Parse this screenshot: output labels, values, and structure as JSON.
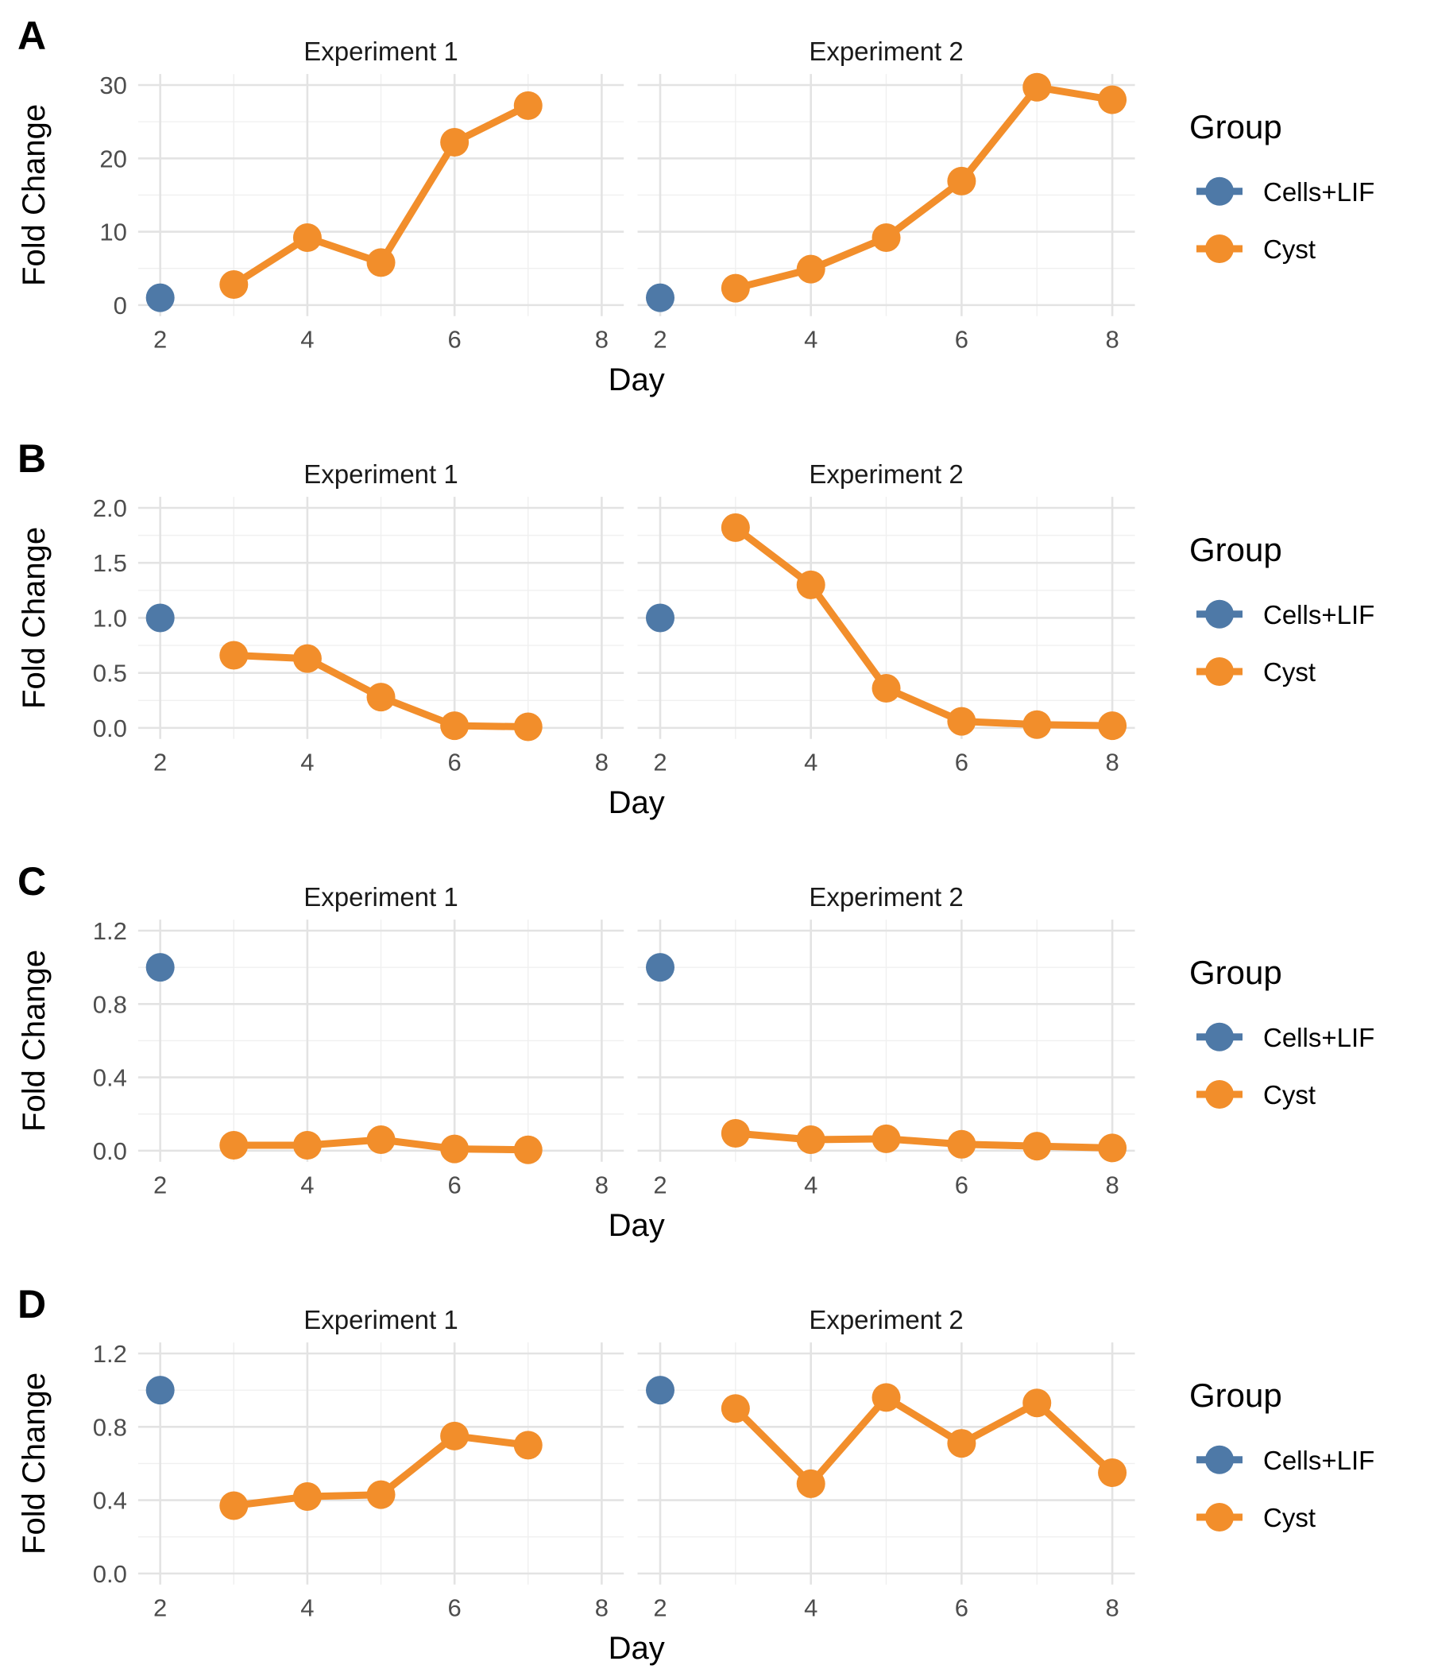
{
  "colors": {
    "cells_lif": "#4e79a7",
    "cyst": "#f28e2b",
    "grid_major": "#e3e3e3",
    "grid_minor": "#f0f0f0"
  },
  "chart_data": [
    {
      "type": "line",
      "panel": "A",
      "xlabel": "Day",
      "ylabel": "Fold Change",
      "x_ticks": [
        2,
        4,
        6,
        8
      ],
      "y_ticks": [
        0,
        10,
        20,
        30
      ],
      "y_tick_labels": [
        "0",
        "10",
        "20",
        "30"
      ],
      "ylim": [
        0,
        30
      ],
      "legend": {
        "title": "Group",
        "entries": [
          "Cells+LIF",
          "Cyst"
        ],
        "position": "right"
      },
      "facets": [
        {
          "title": "Experiment 1",
          "xlim": [
            2,
            8
          ],
          "series": [
            {
              "name": "Cells+LIF",
              "x": [
                2
              ],
              "y": [
                1
              ]
            },
            {
              "name": "Cyst",
              "x": [
                3,
                4,
                5,
                6,
                7
              ],
              "y": [
                2.8,
                9.2,
                5.8,
                22.2,
                27.2
              ]
            }
          ]
        },
        {
          "title": "Experiment 2",
          "xlim": [
            2,
            8
          ],
          "series": [
            {
              "name": "Cells+LIF",
              "x": [
                2
              ],
              "y": [
                1
              ]
            },
            {
              "name": "Cyst",
              "x": [
                3,
                4,
                5,
                6,
                7,
                8
              ],
              "y": [
                2.3,
                4.9,
                9.2,
                16.9,
                29.7,
                28.0
              ]
            }
          ]
        }
      ]
    },
    {
      "type": "line",
      "panel": "B",
      "xlabel": "Day",
      "ylabel": "Fold Change",
      "x_ticks": [
        2,
        4,
        6,
        8
      ],
      "y_ticks": [
        0,
        0.5,
        1,
        1.5,
        2
      ],
      "y_tick_labels": [
        "0.0",
        "0.5",
        "1.0",
        "1.5",
        "2.0"
      ],
      "ylim": [
        0,
        2
      ],
      "legend": {
        "title": "Group",
        "entries": [
          "Cells+LIF",
          "Cyst"
        ],
        "position": "right"
      },
      "facets": [
        {
          "title": "Experiment 1",
          "xlim": [
            2,
            8
          ],
          "series": [
            {
              "name": "Cells+LIF",
              "x": [
                2
              ],
              "y": [
                1
              ]
            },
            {
              "name": "Cyst",
              "x": [
                3,
                4,
                5,
                6,
                7
              ],
              "y": [
                0.66,
                0.63,
                0.28,
                0.02,
                0.01
              ]
            }
          ]
        },
        {
          "title": "Experiment 2",
          "xlim": [
            2,
            8
          ],
          "series": [
            {
              "name": "Cells+LIF",
              "x": [
                2
              ],
              "y": [
                1
              ]
            },
            {
              "name": "Cyst",
              "x": [
                3,
                4,
                5,
                6,
                7,
                8
              ],
              "y": [
                1.82,
                1.3,
                0.36,
                0.06,
                0.03,
                0.02
              ]
            }
          ]
        }
      ]
    },
    {
      "type": "line",
      "panel": "C",
      "xlabel": "Day",
      "ylabel": "Fold Change",
      "x_ticks": [
        2,
        4,
        6,
        8
      ],
      "y_ticks": [
        0,
        0.4,
        0.8,
        1.2
      ],
      "y_tick_labels": [
        "0.0",
        "0.4",
        "0.8",
        "1.2"
      ],
      "ylim": [
        0,
        1.2
      ],
      "legend": {
        "title": "Group",
        "entries": [
          "Cells+LIF",
          "Cyst"
        ],
        "position": "right"
      },
      "facets": [
        {
          "title": "Experiment 1",
          "xlim": [
            2,
            8
          ],
          "series": [
            {
              "name": "Cells+LIF",
              "x": [
                2
              ],
              "y": [
                1
              ]
            },
            {
              "name": "Cyst",
              "x": [
                3,
                4,
                5,
                6,
                7
              ],
              "y": [
                0.03,
                0.03,
                0.06,
                0.01,
                0.005
              ]
            }
          ]
        },
        {
          "title": "Experiment 2",
          "xlim": [
            2,
            8
          ],
          "series": [
            {
              "name": "Cells+LIF",
              "x": [
                2
              ],
              "y": [
                1
              ]
            },
            {
              "name": "Cyst",
              "x": [
                3,
                4,
                5,
                6,
                7,
                8
              ],
              "y": [
                0.095,
                0.06,
                0.065,
                0.035,
                0.025,
                0.015
              ]
            }
          ]
        }
      ]
    },
    {
      "type": "line",
      "panel": "D",
      "xlabel": "Day",
      "ylabel": "Fold Change",
      "x_ticks": [
        2,
        4,
        6,
        8
      ],
      "y_ticks": [
        0,
        0.4,
        0.8,
        1.2
      ],
      "y_tick_labels": [
        "0.0",
        "0.4",
        "0.8",
        "1.2"
      ],
      "ylim": [
        0,
        1.2
      ],
      "legend": {
        "title": "Group",
        "entries": [
          "Cells+LIF",
          "Cyst"
        ],
        "position": "right"
      },
      "facets": [
        {
          "title": "Experiment 1",
          "xlim": [
            2,
            8
          ],
          "series": [
            {
              "name": "Cells+LIF",
              "x": [
                2
              ],
              "y": [
                1
              ]
            },
            {
              "name": "Cyst",
              "x": [
                3,
                4,
                5,
                6,
                7
              ],
              "y": [
                0.37,
                0.42,
                0.43,
                0.75,
                0.7
              ]
            }
          ]
        },
        {
          "title": "Experiment 2",
          "xlim": [
            2,
            8
          ],
          "series": [
            {
              "name": "Cells+LIF",
              "x": [
                2
              ],
              "y": [
                1
              ]
            },
            {
              "name": "Cyst",
              "x": [
                3,
                4,
                5,
                6,
                7,
                8
              ],
              "y": [
                0.9,
                0.49,
                0.96,
                0.71,
                0.93,
                0.55
              ]
            }
          ]
        }
      ]
    }
  ]
}
